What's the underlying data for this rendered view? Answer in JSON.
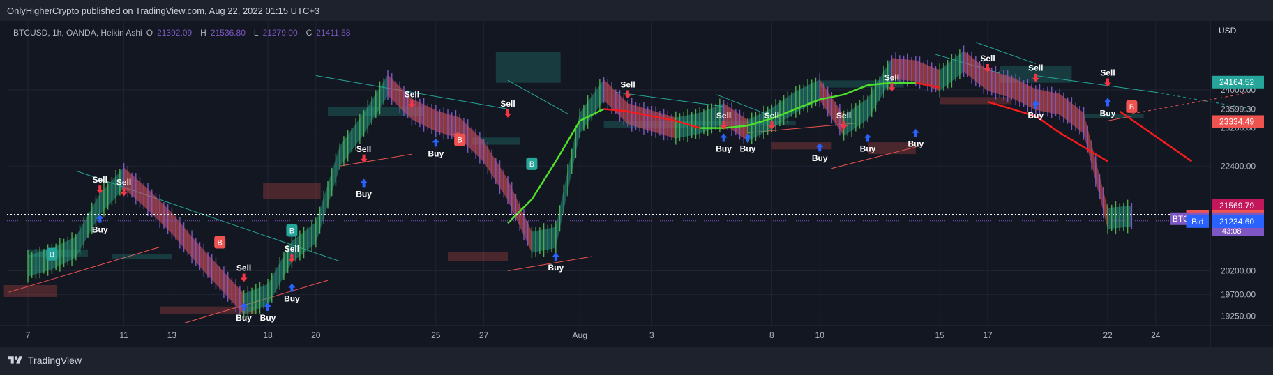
{
  "publisher": "OnlyHigherCrypto published on TradingView.com, Aug 22, 2022 01:15 UTC+3",
  "footer_brand": "TradingView",
  "legend": {
    "symbol": "BTCUSD, 1h, OANDA, Heikin Ashi",
    "o_label": "O",
    "o": "21392.09",
    "h_label": "H",
    "h": "21536.80",
    "l_label": "L",
    "l": "21279.00",
    "c_label": "C",
    "c": "21411.58"
  },
  "colors": {
    "background": "#131722",
    "bull": "#26a69a",
    "bear": "#ef5350",
    "ma_green": "#4ee02a",
    "ma_red": "#f21c1c",
    "trend_teal": "#26a69a",
    "trend_red": "#ef5350",
    "sell_text": "#ffffff",
    "buy_arrow": "#2962ff",
    "sell_arrow": "#f23645"
  },
  "chart_data": {
    "type": "line",
    "title": "",
    "xlabel": "",
    "ylabel": "",
    "currency": "USD",
    "ylim": [
      19050,
      25450
    ],
    "x_ticks": [
      "7",
      "11",
      "13",
      "18",
      "20",
      "25",
      "27",
      "Aug",
      "3",
      "8",
      "10",
      "15",
      "17",
      "22",
      "24"
    ],
    "x_tick_index": [
      0,
      4,
      6,
      10,
      12,
      17,
      19,
      23,
      26,
      31,
      33,
      38,
      40,
      45,
      47
    ],
    "y_ticks": [
      19250,
      19700,
      20200,
      22400,
      23200,
      23599.3,
      24000
    ],
    "y_tick_labels": [
      "19250.00",
      "19700.00",
      "20200.00",
      "22400.00",
      "23200.00",
      "23599.30",
      "24000.00"
    ],
    "series": [
      {
        "values": [
          20300,
          20450,
          20700,
          21600,
          22150,
          21700,
          21200,
          20600,
          20050,
          19500,
          19700,
          20600,
          21000,
          22600,
          23300,
          24100,
          23600,
          23350,
          23200,
          22700,
          21900,
          20800,
          20900,
          23300,
          24000,
          23500,
          23350,
          23200,
          23300,
          23500,
          23150,
          23400,
          23750,
          24000,
          23250,
          23600,
          24450,
          24400,
          24200,
          24600,
          24200,
          24050,
          23800,
          23700,
          23300,
          21300,
          21350
        ]
      },
      {
        "values": [
          null,
          null,
          null,
          null,
          null,
          null,
          null,
          null,
          null,
          null,
          null,
          null,
          null,
          null,
          null,
          null,
          null,
          null,
          null,
          null,
          21200,
          21700,
          22500,
          23350,
          23600,
          23550,
          23450,
          23350,
          23200,
          23200,
          23250,
          23400,
          23600,
          23800,
          23900,
          24100,
          24150,
          24150,
          24050,
          null,
          23750,
          23600,
          23450,
          23100,
          22800,
          22500,
          null
        ]
      }
    ],
    "price_labels": [
      {
        "label": "",
        "value": "24164.52",
        "price": 24164.52,
        "color": "#26a69a"
      },
      {
        "label": "",
        "value": "23334.49",
        "price": 23334.49,
        "color": "#ef5350"
      },
      {
        "label": "",
        "value": "21569.79",
        "price": 21569.79,
        "color": "#c2185b"
      },
      {
        "label": "Ask",
        "value": "21349.80",
        "price": 21349.8,
        "color": "#ef5350"
      },
      {
        "label": "BTCUSD",
        "value": "21294.00",
        "price": 21294.0,
        "color": "#7e57c2",
        "sub": "43:08"
      },
      {
        "label": "Bid",
        "value": "21234.60",
        "price": 21234.6,
        "color": "#2962ff"
      }
    ],
    "signals": [
      {
        "text": "Sell",
        "i": 3,
        "price": 22050,
        "dir": "sell"
      },
      {
        "text": "Sell",
        "i": 4,
        "price": 22000,
        "dir": "sell"
      },
      {
        "text": "Buy",
        "i": 3,
        "price": 21150,
        "dir": "buy"
      },
      {
        "text": "Sell",
        "i": 9,
        "price": 20200,
        "dir": "sell"
      },
      {
        "text": "Buy",
        "i": 9,
        "price": 19300,
        "dir": "buy"
      },
      {
        "text": "Buy",
        "i": 10,
        "price": 19300,
        "dir": "buy"
      },
      {
        "text": "Sell",
        "i": 11,
        "price": 20600,
        "dir": "sell"
      },
      {
        "text": "Buy",
        "i": 11,
        "price": 19700,
        "dir": "buy"
      },
      {
        "text": "Sell",
        "i": 14,
        "price": 22700,
        "dir": "sell"
      },
      {
        "text": "Buy",
        "i": 14,
        "price": 21900,
        "dir": "buy"
      },
      {
        "text": "Sell",
        "i": 16,
        "price": 23850,
        "dir": "sell"
      },
      {
        "text": "Buy",
        "i": 17,
        "price": 22750,
        "dir": "buy"
      },
      {
        "text": "Sell",
        "i": 20,
        "price": 23650,
        "dir": "sell"
      },
      {
        "text": "Buy",
        "i": 22,
        "price": 20350,
        "dir": "buy"
      },
      {
        "text": "Sell",
        "i": 25,
        "price": 24050,
        "dir": "sell"
      },
      {
        "text": "Sell",
        "i": 29,
        "price": 23400,
        "dir": "sell"
      },
      {
        "text": "Sell",
        "i": 31,
        "price": 23400,
        "dir": "sell"
      },
      {
        "text": "Buy",
        "i": 29,
        "price": 22850,
        "dir": "buy"
      },
      {
        "text": "Buy",
        "i": 30,
        "price": 22850,
        "dir": "buy"
      },
      {
        "text": "Sell",
        "i": 34,
        "price": 23400,
        "dir": "sell"
      },
      {
        "text": "Buy",
        "i": 33,
        "price": 22650,
        "dir": "buy"
      },
      {
        "text": "Buy",
        "i": 35,
        "price": 22850,
        "dir": "buy"
      },
      {
        "text": "Sell",
        "i": 36,
        "price": 24200,
        "dir": "sell"
      },
      {
        "text": "Buy",
        "i": 37,
        "price": 22950,
        "dir": "buy"
      },
      {
        "text": "Sell",
        "i": 40,
        "price": 24600,
        "dir": "sell"
      },
      {
        "text": "Buy",
        "i": 42,
        "price": 23550,
        "dir": "buy"
      },
      {
        "text": "Sell",
        "i": 42,
        "price": 24400,
        "dir": "sell"
      },
      {
        "text": "Sell",
        "i": 45,
        "price": 24300,
        "dir": "sell"
      },
      {
        "text": "Buy",
        "i": 45,
        "price": 23600,
        "dir": "buy"
      }
    ],
    "badges": [
      {
        "text": "B",
        "i": 1,
        "price": 20550,
        "type": "bull"
      },
      {
        "text": "B",
        "i": 8,
        "price": 20800,
        "type": "bear"
      },
      {
        "text": "B",
        "i": 11,
        "price": 21050,
        "type": "bull"
      },
      {
        "text": "B",
        "i": 18,
        "price": 22950,
        "type": "bear"
      },
      {
        "text": "B",
        "i": 21,
        "price": 22450,
        "type": "bull"
      },
      {
        "text": "B",
        "i": 46,
        "price": 23650,
        "type": "bear"
      }
    ]
  }
}
